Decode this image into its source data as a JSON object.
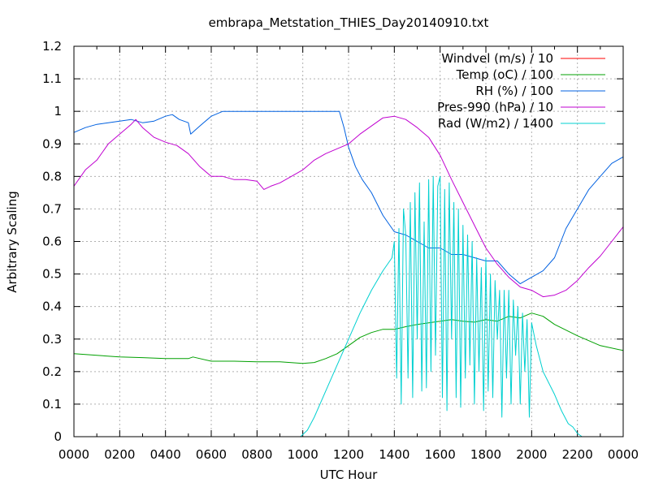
{
  "chart_data": {
    "type": "line",
    "title": "embrapa_Metstation_THIES_Day20140910.txt",
    "xlabel": "UTC Hour",
    "ylabel": "Arbitrary Scaling",
    "xlim": [
      0,
      24
    ],
    "ylim": [
      0,
      1.2
    ],
    "grid": true,
    "legend_position": "top-right",
    "x_ticks": [
      0,
      2,
      4,
      6,
      8,
      10,
      12,
      14,
      16,
      18,
      20,
      22,
      24
    ],
    "x_tick_labels": [
      "0000",
      "0200",
      "0400",
      "0600",
      "0800",
      "1000",
      "1200",
      "1400",
      "1600",
      "1800",
      "2000",
      "2200",
      "0000"
    ],
    "y_ticks": [
      0,
      0.1,
      0.2,
      0.3,
      0.4,
      0.5,
      0.6,
      0.7,
      0.8,
      0.9,
      1,
      1.1,
      1.2
    ],
    "y_tick_labels": [
      "0",
      "0.1",
      "0.2",
      "0.3",
      "0.4",
      "0.5",
      "0.6",
      "0.7",
      "0.8",
      "0.9",
      "1",
      "1.1",
      "1.2"
    ],
    "series": [
      {
        "name": "Windvel (m/s) / 10",
        "color": "#ff0000",
        "x": [],
        "y": []
      },
      {
        "name": "Temp (oC) / 100",
        "color": "#00a000",
        "x": [
          0,
          1,
          2,
          3,
          4,
          5,
          5.2,
          6,
          7,
          8,
          9,
          10,
          10.5,
          11,
          11.5,
          12,
          12.5,
          13,
          13.5,
          14,
          14.5,
          15,
          15.5,
          16,
          16.5,
          17,
          17.5,
          18,
          18.5,
          19,
          19.5,
          20,
          20.5,
          21,
          22,
          23,
          24
        ],
        "y": [
          0.255,
          0.25,
          0.245,
          0.243,
          0.24,
          0.24,
          0.245,
          0.232,
          0.232,
          0.23,
          0.23,
          0.225,
          0.228,
          0.24,
          0.255,
          0.28,
          0.305,
          0.32,
          0.33,
          0.33,
          0.338,
          0.345,
          0.35,
          0.355,
          0.36,
          0.355,
          0.352,
          0.36,
          0.355,
          0.37,
          0.365,
          0.38,
          0.37,
          0.345,
          0.31,
          0.28,
          0.265
        ]
      },
      {
        "name": "RH (%) / 100",
        "color": "#0060e0",
        "x": [
          0,
          0.5,
          1,
          1.5,
          2,
          2.5,
          3,
          3.5,
          4,
          4.3,
          4.6,
          5,
          5.1,
          5.5,
          6,
          6.5,
          7,
          8,
          9,
          10,
          11,
          11.6,
          11.8,
          12,
          12.3,
          12.6,
          13,
          13.5,
          14,
          14.5,
          15,
          15.5,
          16,
          16.5,
          17,
          17.5,
          18,
          18.5,
          19,
          19.5,
          20,
          20.5,
          21,
          21.5,
          22,
          22.5,
          23,
          23.5,
          24
        ],
        "y": [
          0.935,
          0.95,
          0.96,
          0.965,
          0.97,
          0.975,
          0.965,
          0.97,
          0.985,
          0.99,
          0.975,
          0.965,
          0.93,
          0.955,
          0.985,
          1.0,
          1.0,
          1.0,
          1.0,
          1.0,
          1.0,
          1.0,
          0.95,
          0.89,
          0.83,
          0.79,
          0.75,
          0.68,
          0.63,
          0.62,
          0.6,
          0.58,
          0.58,
          0.56,
          0.56,
          0.55,
          0.54,
          0.54,
          0.5,
          0.47,
          0.49,
          0.51,
          0.55,
          0.64,
          0.7,
          0.76,
          0.8,
          0.84,
          0.86
        ]
      },
      {
        "name": "Pres-990 (hPa) / 10",
        "color": "#c000d0",
        "x": [
          0,
          0.5,
          1,
          1.5,
          2,
          2.5,
          2.7,
          3,
          3.5,
          4,
          4.5,
          5,
          5.5,
          6,
          6.5,
          7,
          7.5,
          8,
          8.3,
          8.6,
          9,
          9.5,
          10,
          10.5,
          11,
          11.5,
          12,
          12.5,
          13,
          13.5,
          14,
          14.5,
          15,
          15.5,
          16,
          16.5,
          17,
          17.5,
          18,
          18.5,
          19,
          19.5,
          20,
          20.5,
          21,
          21.5,
          22,
          22.5,
          23,
          23.5,
          24
        ],
        "y": [
          0.77,
          0.82,
          0.85,
          0.9,
          0.93,
          0.96,
          0.975,
          0.95,
          0.92,
          0.905,
          0.895,
          0.87,
          0.83,
          0.8,
          0.8,
          0.79,
          0.79,
          0.785,
          0.76,
          0.77,
          0.78,
          0.8,
          0.82,
          0.85,
          0.87,
          0.885,
          0.9,
          0.93,
          0.955,
          0.98,
          0.985,
          0.975,
          0.95,
          0.92,
          0.865,
          0.79,
          0.72,
          0.65,
          0.58,
          0.53,
          0.49,
          0.46,
          0.45,
          0.43,
          0.435,
          0.45,
          0.48,
          0.52,
          0.555,
          0.6,
          0.645
        ]
      },
      {
        "name": "Rad (W/m2) / 1400",
        "color": "#00d0d0",
        "x": [
          0,
          9.9,
          10.2,
          10.5,
          11,
          11.5,
          12,
          12.5,
          13,
          13.5,
          13.9,
          14,
          14.1,
          14.2,
          14.3,
          14.4,
          14.5,
          14.6,
          14.7,
          14.8,
          14.9,
          15,
          15.1,
          15.2,
          15.3,
          15.4,
          15.5,
          15.6,
          15.7,
          15.8,
          15.9,
          16,
          16.1,
          16.2,
          16.3,
          16.4,
          16.5,
          16.6,
          16.7,
          16.8,
          16.9,
          17,
          17.1,
          17.2,
          17.3,
          17.4,
          17.5,
          17.6,
          17.7,
          17.8,
          17.9,
          18,
          18.1,
          18.2,
          18.3,
          18.4,
          18.5,
          18.6,
          18.7,
          18.8,
          18.9,
          19,
          19.1,
          19.2,
          19.3,
          19.4,
          19.5,
          19.6,
          19.7,
          19.8,
          19.9,
          20,
          20.2,
          20.5,
          21,
          21.3,
          21.6,
          21.8,
          22,
          22.2,
          24
        ],
        "y": [
          0,
          0,
          0.02,
          0.06,
          0.14,
          0.22,
          0.3,
          0.38,
          0.45,
          0.51,
          0.55,
          0.6,
          0.18,
          0.64,
          0.1,
          0.7,
          0.62,
          0.18,
          0.72,
          0.12,
          0.75,
          0.3,
          0.78,
          0.14,
          0.66,
          0.15,
          0.79,
          0.2,
          0.8,
          0.25,
          0.77,
          0.8,
          0.12,
          0.76,
          0.08,
          0.78,
          0.3,
          0.72,
          0.12,
          0.7,
          0.09,
          0.65,
          0.18,
          0.62,
          0.22,
          0.6,
          0.1,
          0.55,
          0.2,
          0.52,
          0.08,
          0.55,
          0.14,
          0.5,
          0.12,
          0.48,
          0.3,
          0.45,
          0.06,
          0.45,
          0.18,
          0.45,
          0.1,
          0.42,
          0.25,
          0.4,
          0.1,
          0.38,
          0.2,
          0.36,
          0.06,
          0.35,
          0.28,
          0.2,
          0.13,
          0.08,
          0.04,
          0.03,
          0.01,
          0.0,
          0
        ]
      }
    ]
  }
}
